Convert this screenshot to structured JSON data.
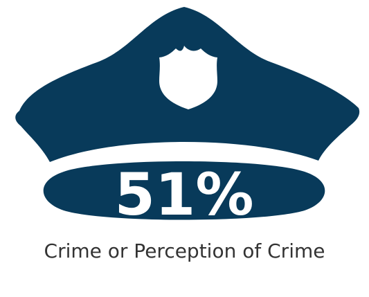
{
  "infographic": {
    "percentage": "51%",
    "caption": "Crime or Perception of Crime",
    "icon": "police-hat-icon",
    "badge_icon": "police-badge-icon"
  },
  "colors": {
    "hat": "#083A5A",
    "badge": "#FFFFFF",
    "text": "#333333",
    "background": "#FFFFFF"
  }
}
